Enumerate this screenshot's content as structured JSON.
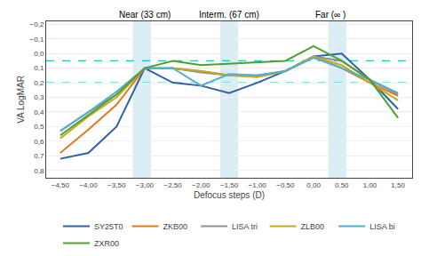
{
  "chart_data": {
    "type": "line",
    "xlabel": "Defocus steps (D)",
    "ylabel": "VA LogMAR",
    "x": [
      -4.5,
      -4.0,
      -3.5,
      -3.0,
      -2.5,
      -2.0,
      -1.5,
      -1.0,
      -0.5,
      0.0,
      0.5,
      1.0,
      1.5
    ],
    "series": [
      {
        "name": "SY25T0",
        "color": "#3060a8",
        "values": [
          0.72,
          0.68,
          0.5,
          0.1,
          0.2,
          0.22,
          0.27,
          0.2,
          0.12,
          0.02,
          0.0,
          0.18,
          0.38
        ]
      },
      {
        "name": "ZKB00",
        "color": "#e07820",
        "values": [
          0.68,
          0.52,
          0.35,
          0.1,
          0.1,
          0.12,
          0.15,
          0.16,
          0.12,
          0.02,
          0.1,
          0.2,
          0.29
        ]
      },
      {
        "name": "LISA tri",
        "color": "#909090",
        "values": [
          0.53,
          0.4,
          0.28,
          0.1,
          0.1,
          0.13,
          0.15,
          0.15,
          0.12,
          0.02,
          0.05,
          0.18,
          0.28
        ]
      },
      {
        "name": "ZLB00",
        "color": "#c8a820",
        "values": [
          0.58,
          0.43,
          0.3,
          0.1,
          0.1,
          0.12,
          0.15,
          0.16,
          0.12,
          0.02,
          0.08,
          0.2,
          0.32
        ]
      },
      {
        "name": "LISA bi",
        "color": "#50b0d0",
        "values": [
          0.53,
          0.4,
          0.26,
          0.1,
          0.1,
          0.22,
          0.14,
          0.15,
          0.12,
          0.03,
          0.1,
          0.18,
          0.27
        ]
      },
      {
        "name": "ZXR00",
        "color": "#50a030",
        "values": [
          0.56,
          0.42,
          0.28,
          0.1,
          0.05,
          0.08,
          0.07,
          0.06,
          0.05,
          -0.05,
          0.05,
          0.18,
          0.44
        ]
      }
    ],
    "xlim": [
      -4.75,
      1.75
    ],
    "xticks": [
      {
        "value": -4.5,
        "label": "−4,50"
      },
      {
        "value": -4.0,
        "label": "−4,00"
      },
      {
        "value": -3.5,
        "label": "−3,50"
      },
      {
        "value": -3.0,
        "label": "−3,00"
      },
      {
        "value": -2.5,
        "label": "−2,50"
      },
      {
        "value": -2.0,
        "label": "−2,00"
      },
      {
        "value": -1.5,
        "label": "−1,50"
      },
      {
        "value": -1.0,
        "label": "−1,00"
      },
      {
        "value": -0.5,
        "label": "−0,50"
      },
      {
        "value": 0.0,
        "label": "0,00"
      },
      {
        "value": 0.5,
        "label": "0,50"
      },
      {
        "value": 1.0,
        "label": "1,00"
      },
      {
        "value": 1.5,
        "label": "1,50"
      }
    ],
    "ylim": [
      0.85,
      -0.22
    ],
    "yticks": [
      {
        "value": -0.2,
        "label": "−0,2"
      },
      {
        "value": -0.1,
        "label": "−0,1"
      },
      {
        "value": 0.0,
        "label": "0,0"
      },
      {
        "value": 0.1,
        "label": "0,1"
      },
      {
        "value": 0.2,
        "label": "0,2"
      },
      {
        "value": 0.3,
        "label": "0,3"
      },
      {
        "value": 0.4,
        "label": "0,4"
      },
      {
        "value": 0.5,
        "label": "0,5"
      },
      {
        "value": 0.6,
        "label": "0,6"
      },
      {
        "value": 0.7,
        "label": "0,7"
      },
      {
        "value": 0.8,
        "label": "0,8"
      }
    ],
    "grid": "y",
    "legend": "bottom",
    "bands": [
      {
        "x0": -3.21,
        "x1": -2.89,
        "color": "#add8e6"
      },
      {
        "x0": -1.66,
        "x1": -1.34,
        "color": "#add8e6"
      },
      {
        "x0": 0.26,
        "x1": 0.58,
        "color": "#add8e6"
      }
    ],
    "hlines": [
      {
        "value": 0.05,
        "color": "#20c0d0",
        "line_style": "dashed"
      },
      {
        "value": 0.2,
        "color": "#20c0d0",
        "line_style": "dashed"
      }
    ],
    "annotations": [
      {
        "text": "Near (33 cm)",
        "x": -3.0
      },
      {
        "text": "Interm. (67 cm)",
        "x": -1.5
      },
      {
        "text": "Far (∞ )",
        "x": 0.3
      }
    ]
  }
}
